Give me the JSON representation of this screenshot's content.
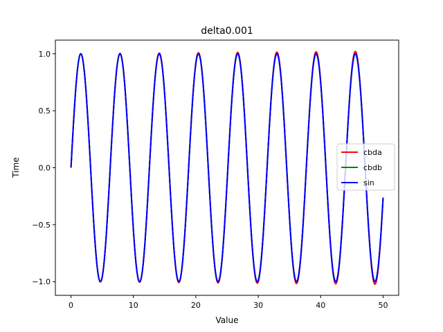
{
  "chart_data": {
    "type": "line",
    "title": "delta0.001",
    "xlabel": "Value",
    "ylabel": "Time",
    "xlim": [
      -2.5,
      52.5
    ],
    "ylim": [
      -1.12,
      1.12
    ],
    "x_ticks": [
      0,
      10,
      20,
      30,
      40,
      50
    ],
    "x_tick_labels": [
      "0",
      "10",
      "20",
      "30",
      "40",
      "50"
    ],
    "y_ticks": [
      -1.0,
      -0.5,
      0.0,
      0.5,
      1.0
    ],
    "y_tick_labels": [
      "−1.0",
      "−0.5",
      "0.0",
      "0.5",
      "1.0"
    ],
    "x_range": [
      0,
      50
    ],
    "grid": false,
    "legend_position": "center-right",
    "series": [
      {
        "name": "cbda",
        "color": "#ff0000",
        "function": "sin(x)",
        "amplitude_growth_per_unit_x": 0.00045
      },
      {
        "name": "cbdb",
        "color": "#008000",
        "function": "sin(x)",
        "amplitude_growth_per_unit_x": 0.0
      },
      {
        "name": "sin",
        "color": "#0000ff",
        "function": "sin(x)",
        "amplitude_growth_per_unit_x": 0.0
      }
    ]
  }
}
